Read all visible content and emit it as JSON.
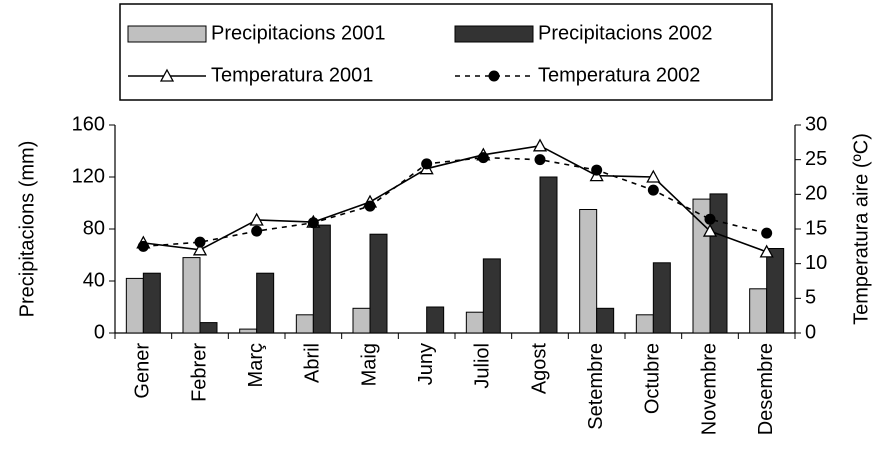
{
  "chart_data": {
    "type": "bar",
    "categories": [
      "Gener",
      "Febrer",
      "Març",
      "Abril",
      "Maig",
      "Juny",
      "Juliol",
      "Agost",
      "Setembre",
      "Octubre",
      "Novembre",
      "Desembre"
    ],
    "series": [
      {
        "name": "Precipitacions 2001",
        "type": "bar",
        "color": "#c0c0c0",
        "values": [
          42,
          58,
          3,
          14,
          19,
          0,
          16,
          0,
          95,
          14,
          103,
          34
        ]
      },
      {
        "name": "Precipitacions 2002",
        "type": "bar",
        "color": "#333333",
        "values": [
          46,
          8,
          46,
          83,
          76,
          20,
          57,
          120,
          19,
          54,
          107,
          65
        ]
      },
      {
        "name": "Temperatura 2001",
        "type": "line",
        "axis": "y2",
        "color": "#000000",
        "line_style": "solid",
        "marker": "triangle",
        "values": [
          13.0,
          12.0,
          16.3,
          16.0,
          18.9,
          23.7,
          25.7,
          27.0,
          22.7,
          22.5,
          14.7,
          11.7
        ]
      },
      {
        "name": "Temperatura 2002",
        "type": "line",
        "axis": "y2",
        "color": "#000000",
        "line_style": "dashed",
        "marker": "circle",
        "values": [
          12.5,
          13.1,
          14.7,
          15.9,
          18.3,
          24.4,
          25.3,
          25.0,
          23.5,
          20.6,
          16.4,
          14.4
        ]
      }
    ],
    "ylabel": "Precipitacions (mm)",
    "y2label": "Temperatura aire (ºC)",
    "ylim": [
      0,
      160
    ],
    "yticks": [
      0,
      40,
      80,
      120,
      160
    ],
    "y2lim": [
      0,
      30
    ],
    "y2ticks": [
      0,
      5,
      10,
      15,
      20,
      25,
      30
    ],
    "legend": "top",
    "grid": false
  }
}
